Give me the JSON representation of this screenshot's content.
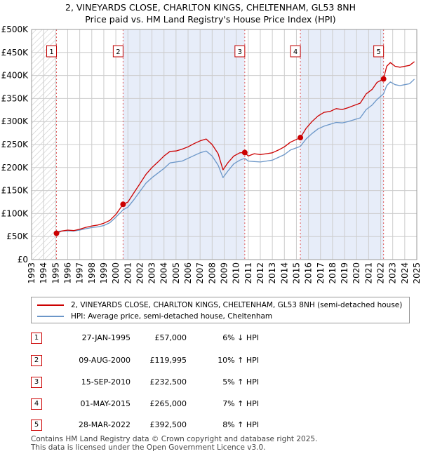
{
  "chart_data": {
    "type": "line",
    "title_line1": "2, VINEYARDS CLOSE, CHARLTON KINGS, CHELTENHAM, GL53 8NH",
    "title_line2": "Price paid vs. HM Land Registry's House Price Index (HPI)",
    "xlim": [
      1993,
      2025
    ],
    "ylim": [
      0,
      500000
    ],
    "y_ticks": [
      {
        "value": 0,
        "label": "£0"
      },
      {
        "value": 50000,
        "label": "£50K"
      },
      {
        "value": 100000,
        "label": "£100K"
      },
      {
        "value": 150000,
        "label": "£150K"
      },
      {
        "value": 200000,
        "label": "£200K"
      },
      {
        "value": 250000,
        "label": "£250K"
      },
      {
        "value": 300000,
        "label": "£300K"
      },
      {
        "value": 350000,
        "label": "£350K"
      },
      {
        "value": 400000,
        "label": "£400K"
      },
      {
        "value": 450000,
        "label": "£450K"
      },
      {
        "value": 500000,
        "label": "£500K"
      }
    ],
    "x_ticks": [
      "1993",
      "1994",
      "1995",
      "1996",
      "1997",
      "1998",
      "1999",
      "2000",
      "2001",
      "2002",
      "2003",
      "2004",
      "2005",
      "2006",
      "2007",
      "2008",
      "2009",
      "2010",
      "2011",
      "2012",
      "2013",
      "2014",
      "2015",
      "2016",
      "2017",
      "2018",
      "2019",
      "2020",
      "2021",
      "2022",
      "2023",
      "2024",
      "2025"
    ],
    "hatch_before": 1995.07,
    "series": [
      {
        "name": "2, VINEYARDS CLOSE, CHARLTON KINGS, CHELTENHAM, GL53 8NH (semi-detached house)",
        "color": "#cc0000",
        "points": [
          [
            1995.07,
            57000
          ],
          [
            1995.5,
            62000
          ],
          [
            1996,
            64000
          ],
          [
            1996.5,
            63000
          ],
          [
            1997,
            66000
          ],
          [
            1997.5,
            70000
          ],
          [
            1998,
            73000
          ],
          [
            1998.5,
            75000
          ],
          [
            1999,
            79000
          ],
          [
            1999.5,
            85000
          ],
          [
            2000,
            98000
          ],
          [
            2000.6,
            119995
          ],
          [
            2001,
            125000
          ],
          [
            2001.5,
            145000
          ],
          [
            2002,
            165000
          ],
          [
            2002.5,
            185000
          ],
          [
            2003,
            200000
          ],
          [
            2003.5,
            212000
          ],
          [
            2004,
            225000
          ],
          [
            2004.5,
            235000
          ],
          [
            2005,
            236000
          ],
          [
            2005.5,
            240000
          ],
          [
            2006,
            245000
          ],
          [
            2006.5,
            252000
          ],
          [
            2007,
            258000
          ],
          [
            2007.5,
            262000
          ],
          [
            2008,
            250000
          ],
          [
            2008.5,
            230000
          ],
          [
            2008.9,
            195000
          ],
          [
            2009.3,
            210000
          ],
          [
            2009.8,
            225000
          ],
          [
            2010.3,
            232000
          ],
          [
            2010.71,
            232500
          ],
          [
            2011,
            225000
          ],
          [
            2011.5,
            230000
          ],
          [
            2012,
            228000
          ],
          [
            2012.5,
            230000
          ],
          [
            2013,
            232000
          ],
          [
            2013.5,
            238000
          ],
          [
            2014,
            245000
          ],
          [
            2014.5,
            255000
          ],
          [
            2015.33,
            265000
          ],
          [
            2015.8,
            285000
          ],
          [
            2016.3,
            300000
          ],
          [
            2016.8,
            312000
          ],
          [
            2017.3,
            320000
          ],
          [
            2017.8,
            322000
          ],
          [
            2018.3,
            328000
          ],
          [
            2018.8,
            326000
          ],
          [
            2019.3,
            330000
          ],
          [
            2019.8,
            335000
          ],
          [
            2020.3,
            340000
          ],
          [
            2020.8,
            360000
          ],
          [
            2021.3,
            370000
          ],
          [
            2021.7,
            385000
          ],
          [
            2022.24,
            392500
          ],
          [
            2022.5,
            420000
          ],
          [
            2022.8,
            428000
          ],
          [
            2023.2,
            420000
          ],
          [
            2023.6,
            418000
          ],
          [
            2024,
            420000
          ],
          [
            2024.4,
            422000
          ],
          [
            2024.8,
            430000
          ]
        ]
      },
      {
        "name": "HPI: Average price, semi-detached house, Cheltenham",
        "color": "#6b96c8",
        "points": [
          [
            1995,
            61000
          ],
          [
            1995.5,
            62000
          ],
          [
            1996,
            62500
          ],
          [
            1996.5,
            62000
          ],
          [
            1997,
            64000
          ],
          [
            1997.5,
            67000
          ],
          [
            1998,
            69500
          ],
          [
            1998.5,
            71000
          ],
          [
            1999,
            74000
          ],
          [
            1999.5,
            80000
          ],
          [
            2000,
            92000
          ],
          [
            2000.6,
            108000
          ],
          [
            2001,
            114000
          ],
          [
            2001.5,
            130000
          ],
          [
            2002,
            148000
          ],
          [
            2002.5,
            166000
          ],
          [
            2003,
            178000
          ],
          [
            2003.5,
            188000
          ],
          [
            2004,
            198000
          ],
          [
            2004.5,
            210000
          ],
          [
            2005,
            212000
          ],
          [
            2005.5,
            214000
          ],
          [
            2006,
            220000
          ],
          [
            2006.5,
            226000
          ],
          [
            2007,
            232000
          ],
          [
            2007.5,
            236000
          ],
          [
            2008,
            225000
          ],
          [
            2008.5,
            205000
          ],
          [
            2008.9,
            178000
          ],
          [
            2009.3,
            192000
          ],
          [
            2009.8,
            208000
          ],
          [
            2010.3,
            216000
          ],
          [
            2010.71,
            220000
          ],
          [
            2011,
            214000
          ],
          [
            2011.5,
            213000
          ],
          [
            2012,
            212000
          ],
          [
            2012.5,
            214000
          ],
          [
            2013,
            216000
          ],
          [
            2013.5,
            222000
          ],
          [
            2014,
            228000
          ],
          [
            2014.5,
            238000
          ],
          [
            2015.33,
            246000
          ],
          [
            2015.8,
            262000
          ],
          [
            2016.3,
            274000
          ],
          [
            2016.8,
            284000
          ],
          [
            2017.3,
            290000
          ],
          [
            2017.8,
            294000
          ],
          [
            2018.3,
            298000
          ],
          [
            2018.8,
            297000
          ],
          [
            2019.3,
            300000
          ],
          [
            2019.8,
            304000
          ],
          [
            2020.3,
            308000
          ],
          [
            2020.8,
            326000
          ],
          [
            2021.3,
            336000
          ],
          [
            2021.7,
            348000
          ],
          [
            2022.24,
            360000
          ],
          [
            2022.5,
            378000
          ],
          [
            2022.8,
            386000
          ],
          [
            2023.2,
            380000
          ],
          [
            2023.6,
            378000
          ],
          [
            2024,
            380000
          ],
          [
            2024.4,
            382000
          ],
          [
            2024.8,
            392000
          ]
        ]
      }
    ],
    "sales": [
      {
        "num": "1",
        "x": 1995.07,
        "price_value": 57000
      },
      {
        "num": "2",
        "x": 2000.6,
        "price_value": 119995
      },
      {
        "num": "3",
        "x": 2010.71,
        "price_value": 232500
      },
      {
        "num": "4",
        "x": 2015.33,
        "price_value": 265000
      },
      {
        "num": "5",
        "x": 2022.24,
        "price_value": 392500
      }
    ],
    "shaded_spans": [
      [
        2000.6,
        2010.71
      ],
      [
        2015.33,
        2022.24
      ]
    ],
    "marker_color": "#cc0000",
    "grid": true
  },
  "legend": {
    "property_label": "2, VINEYARDS CLOSE, CHARLTON KINGS, CHELTENHAM, GL53 8NH (semi-detached house)",
    "hpi_label": "HPI: Average price, semi-detached house, Cheltenham"
  },
  "sales_table": [
    {
      "num": "1",
      "date": "27-JAN-1995",
      "price": "£57,000",
      "hpi": "6% ↓ HPI"
    },
    {
      "num": "2",
      "date": "09-AUG-2000",
      "price": "£119,995",
      "hpi": "10% ↑ HPI"
    },
    {
      "num": "3",
      "date": "15-SEP-2010",
      "price": "£232,500",
      "hpi": "5% ↑ HPI"
    },
    {
      "num": "4",
      "date": "01-MAY-2015",
      "price": "£265,000",
      "hpi": "7% ↑ HPI"
    },
    {
      "num": "5",
      "date": "28-MAR-2022",
      "price": "£392,500",
      "hpi": "8% ↑ HPI"
    }
  ],
  "footer": {
    "line1": "Contains HM Land Registry data © Crown copyright and database right 2025.",
    "line2": "This data is licensed under the Open Government Licence v3.0."
  }
}
